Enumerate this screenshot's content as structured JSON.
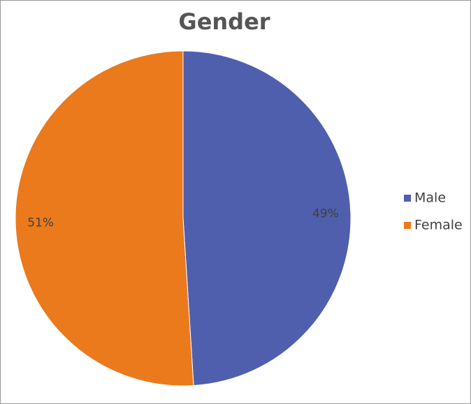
{
  "chart_data": {
    "type": "pie",
    "title": "Gender",
    "categories": [
      "Male",
      "Female"
    ],
    "values": [
      49,
      51
    ],
    "value_labels": [
      "49%",
      "51%"
    ],
    "colors": [
      "#4f5fae",
      "#ea7a1c"
    ],
    "legend": "right"
  }
}
